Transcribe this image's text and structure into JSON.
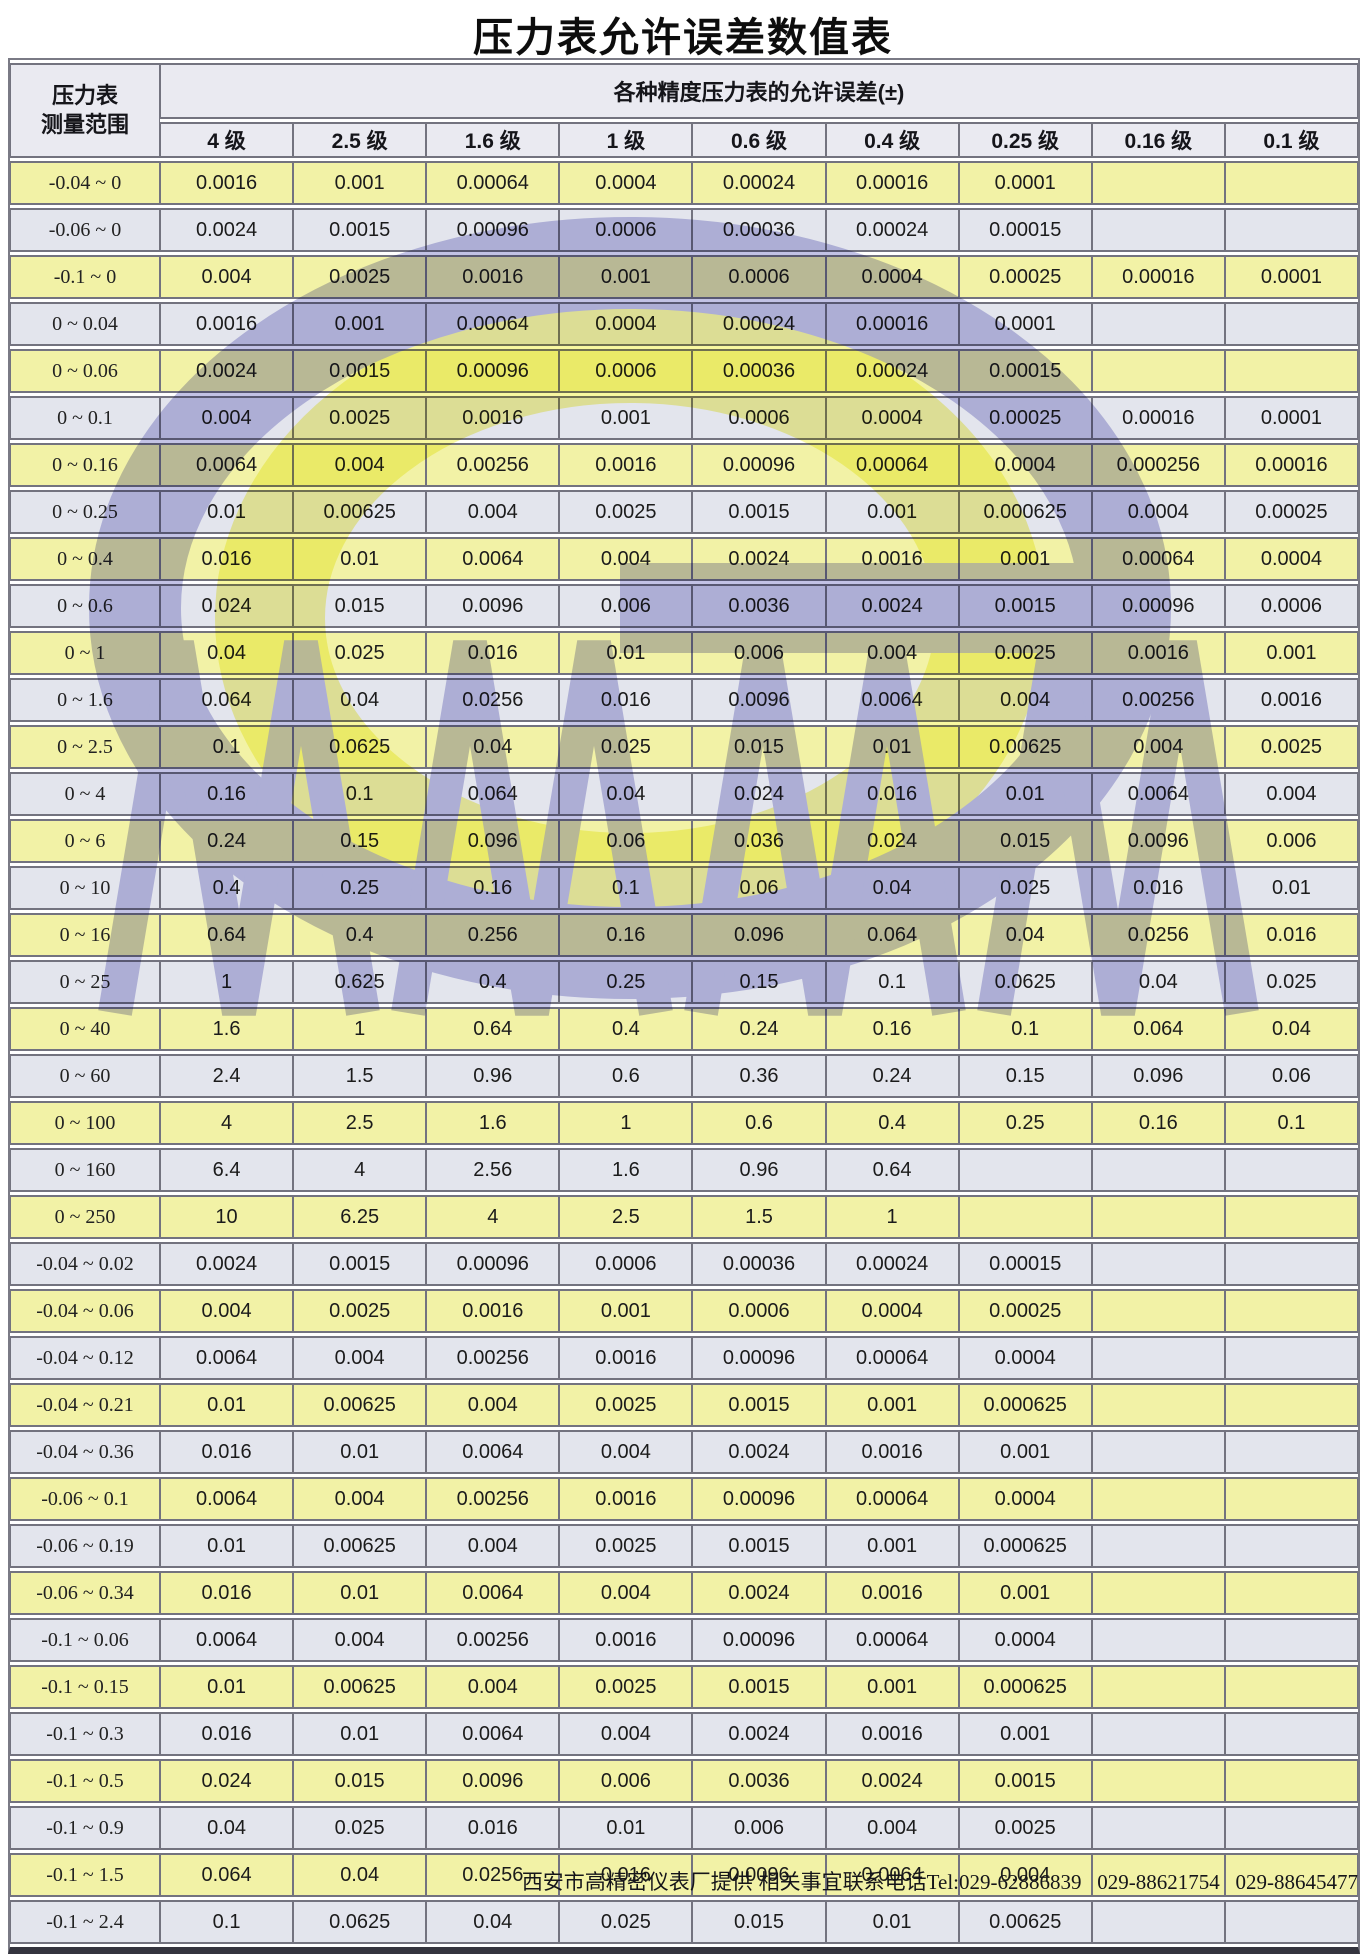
{
  "title": "压力表允许误差数值表",
  "table": {
    "corner_header_line1": "压力表",
    "corner_header_line2": "测量范围",
    "error_header": "各种精度压力表的允许误差(±)",
    "grade_headers": [
      "4 级",
      "2.5 级",
      "1.6 级",
      "1 级",
      "0.6 级",
      "0.4 级",
      "0.25 级",
      "0.16 级",
      "0.1 级"
    ],
    "rows": [
      {
        "range": "-0.04 ~ 0",
        "values": [
          "0.0016",
          "0.001",
          "0.00064",
          "0.0004",
          "0.00024",
          "0.00016",
          "0.0001",
          "",
          ""
        ]
      },
      {
        "range": "-0.06 ~ 0",
        "values": [
          "0.0024",
          "0.0015",
          "0.00096",
          "0.0006",
          "0.00036",
          "0.00024",
          "0.00015",
          "",
          ""
        ]
      },
      {
        "range": "-0.1 ~ 0",
        "values": [
          "0.004",
          "0.0025",
          "0.0016",
          "0.001",
          "0.0006",
          "0.0004",
          "0.00025",
          "0.00016",
          "0.0001"
        ]
      },
      {
        "range": "0 ~ 0.04",
        "values": [
          "0.0016",
          "0.001",
          "0.00064",
          "0.0004",
          "0.00024",
          "0.00016",
          "0.0001",
          "",
          ""
        ]
      },
      {
        "range": "0 ~ 0.06",
        "values": [
          "0.0024",
          "0.0015",
          "0.00096",
          "0.0006",
          "0.00036",
          "0.00024",
          "0.00015",
          "",
          ""
        ]
      },
      {
        "range": "0 ~ 0.1",
        "values": [
          "0.004",
          "0.0025",
          "0.0016",
          "0.001",
          "0.0006",
          "0.0004",
          "0.00025",
          "0.00016",
          "0.0001"
        ]
      },
      {
        "range": "0 ~ 0.16",
        "values": [
          "0.0064",
          "0.004",
          "0.00256",
          "0.0016",
          "0.00096",
          "0.00064",
          "0.0004",
          "0.000256",
          "0.00016"
        ]
      },
      {
        "range": "0 ~ 0.25",
        "values": [
          "0.01",
          "0.00625",
          "0.004",
          "0.0025",
          "0.0015",
          "0.001",
          "0.000625",
          "0.0004",
          "0.00025"
        ]
      },
      {
        "range": "0 ~ 0.4",
        "values": [
          "0.016",
          "0.01",
          "0.0064",
          "0.004",
          "0.0024",
          "0.0016",
          "0.001",
          "0.00064",
          "0.0004"
        ]
      },
      {
        "range": "0 ~ 0.6",
        "values": [
          "0.024",
          "0.015",
          "0.0096",
          "0.006",
          "0.0036",
          "0.0024",
          "0.0015",
          "0.00096",
          "0.0006"
        ]
      },
      {
        "range": "0 ~ 1",
        "values": [
          "0.04",
          "0.025",
          "0.016",
          "0.01",
          "0.006",
          "0.004",
          "0.0025",
          "0.0016",
          "0.001"
        ]
      },
      {
        "range": "0 ~ 1.6",
        "values": [
          "0.064",
          "0.04",
          "0.0256",
          "0.016",
          "0.0096",
          "0.0064",
          "0.004",
          "0.00256",
          "0.0016"
        ]
      },
      {
        "range": "0 ~ 2.5",
        "values": [
          "0.1",
          "0.0625",
          "0.04",
          "0.025",
          "0.015",
          "0.01",
          "0.00625",
          "0.004",
          "0.0025"
        ]
      },
      {
        "range": "0 ~ 4",
        "values": [
          "0.16",
          "0.1",
          "0.064",
          "0.04",
          "0.024",
          "0.016",
          "0.01",
          "0.0064",
          "0.004"
        ]
      },
      {
        "range": "0 ~ 6",
        "values": [
          "0.24",
          "0.15",
          "0.096",
          "0.06",
          "0.036",
          "0.024",
          "0.015",
          "0.0096",
          "0.006"
        ]
      },
      {
        "range": "0 ~ 10",
        "values": [
          "0.4",
          "0.25",
          "0.16",
          "0.1",
          "0.06",
          "0.04",
          "0.025",
          "0.016",
          "0.01"
        ]
      },
      {
        "range": "0 ~ 16",
        "values": [
          "0.64",
          "0.4",
          "0.256",
          "0.16",
          "0.096",
          "0.064",
          "0.04",
          "0.0256",
          "0.016"
        ]
      },
      {
        "range": "0 ~ 25",
        "values": [
          "1",
          "0.625",
          "0.4",
          "0.25",
          "0.15",
          "0.1",
          "0.0625",
          "0.04",
          "0.025"
        ]
      },
      {
        "range": "0 ~ 40",
        "values": [
          "1.6",
          "1",
          "0.64",
          "0.4",
          "0.24",
          "0.16",
          "0.1",
          "0.064",
          "0.04"
        ]
      },
      {
        "range": "0 ~ 60",
        "values": [
          "2.4",
          "1.5",
          "0.96",
          "0.6",
          "0.36",
          "0.24",
          "0.15",
          "0.096",
          "0.06"
        ]
      },
      {
        "range": "0 ~ 100",
        "values": [
          "4",
          "2.5",
          "1.6",
          "1",
          "0.6",
          "0.4",
          "0.25",
          "0.16",
          "0.1"
        ]
      },
      {
        "range": "0 ~ 160",
        "values": [
          "6.4",
          "4",
          "2.56",
          "1.6",
          "0.96",
          "0.64",
          "",
          "",
          ""
        ]
      },
      {
        "range": "0 ~ 250",
        "values": [
          "10",
          "6.25",
          "4",
          "2.5",
          "1.5",
          "1",
          "",
          "",
          ""
        ]
      },
      {
        "range": "-0.04 ~ 0.02",
        "values": [
          "0.0024",
          "0.0015",
          "0.00096",
          "0.0006",
          "0.00036",
          "0.00024",
          "0.00015",
          "",
          ""
        ]
      },
      {
        "range": "-0.04 ~ 0.06",
        "values": [
          "0.004",
          "0.0025",
          "0.0016",
          "0.001",
          "0.0006",
          "0.0004",
          "0.00025",
          "",
          ""
        ]
      },
      {
        "range": "-0.04 ~ 0.12",
        "values": [
          "0.0064",
          "0.004",
          "0.00256",
          "0.0016",
          "0.00096",
          "0.00064",
          "0.0004",
          "",
          ""
        ]
      },
      {
        "range": "-0.04 ~ 0.21",
        "values": [
          "0.01",
          "0.00625",
          "0.004",
          "0.0025",
          "0.0015",
          "0.001",
          "0.000625",
          "",
          ""
        ]
      },
      {
        "range": "-0.04 ~ 0.36",
        "values": [
          "0.016",
          "0.01",
          "0.0064",
          "0.004",
          "0.0024",
          "0.0016",
          "0.001",
          "",
          ""
        ]
      },
      {
        "range": "-0.06 ~ 0.1",
        "values": [
          "0.0064",
          "0.004",
          "0.00256",
          "0.0016",
          "0.00096",
          "0.00064",
          "0.0004",
          "",
          ""
        ]
      },
      {
        "range": "-0.06 ~ 0.19",
        "values": [
          "0.01",
          "0.00625",
          "0.004",
          "0.0025",
          "0.0015",
          "0.001",
          "0.000625",
          "",
          ""
        ]
      },
      {
        "range": "-0.06 ~ 0.34",
        "values": [
          "0.016",
          "0.01",
          "0.0064",
          "0.004",
          "0.0024",
          "0.0016",
          "0.001",
          "",
          ""
        ]
      },
      {
        "range": "-0.1 ~ 0.06",
        "values": [
          "0.0064",
          "0.004",
          "0.00256",
          "0.0016",
          "0.00096",
          "0.00064",
          "0.0004",
          "",
          ""
        ]
      },
      {
        "range": "-0.1 ~ 0.15",
        "values": [
          "0.01",
          "0.00625",
          "0.004",
          "0.0025",
          "0.0015",
          "0.001",
          "0.000625",
          "",
          ""
        ]
      },
      {
        "range": "-0.1 ~ 0.3",
        "values": [
          "0.016",
          "0.01",
          "0.0064",
          "0.004",
          "0.0024",
          "0.0016",
          "0.001",
          "",
          ""
        ]
      },
      {
        "range": "-0.1 ~ 0.5",
        "values": [
          "0.024",
          "0.015",
          "0.0096",
          "0.006",
          "0.0036",
          "0.0024",
          "0.0015",
          "",
          ""
        ]
      },
      {
        "range": "-0.1 ~ 0.9",
        "values": [
          "0.04",
          "0.025",
          "0.016",
          "0.01",
          "0.006",
          "0.004",
          "0.0025",
          "",
          ""
        ]
      },
      {
        "range": "-0.1 ~ 1.5",
        "values": [
          "0.064",
          "0.04",
          "0.0256",
          "0.016",
          "0.0096",
          "0.0064",
          "0.004",
          "",
          ""
        ]
      },
      {
        "range": "-0.1 ~ 2.4",
        "values": [
          "0.1",
          "0.0625",
          "0.04",
          "0.025",
          "0.015",
          "0.01",
          "0.00625",
          "",
          ""
        ]
      }
    ]
  },
  "footer": {
    "provider": "西安市高精密仪表厂提供 相关事宜联系电话",
    "tel": "Tel:029-62886839   029-88621754   029-88645477"
  },
  "watermark": {
    "ring_color": "#8f8fd0",
    "swoosh_color": "#f0f052"
  },
  "colors": {
    "row_yellow": "#f2f2a6",
    "row_gray": "#e3e5ed",
    "header_bg": "#eaeaf1",
    "border": "#73737f"
  }
}
